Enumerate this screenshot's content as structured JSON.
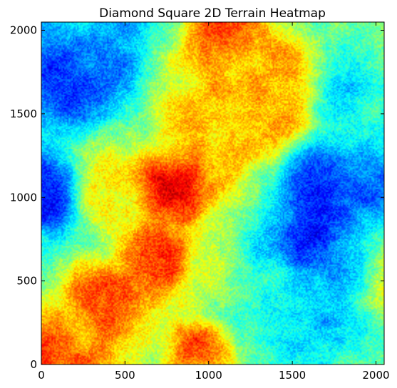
{
  "chart_data": {
    "type": "heatmap",
    "title": "Diamond Square 2D Terrain Heatmap",
    "xlabel": "",
    "ylabel": "",
    "xlim": [
      0,
      2049
    ],
    "ylim": [
      0,
      2049
    ],
    "x_ticks": [
      0,
      500,
      1000,
      1500,
      2000
    ],
    "y_ticks": [
      0,
      500,
      1000,
      1500,
      2000
    ],
    "x_tick_labels": [
      "0",
      "500",
      "1000",
      "1500",
      "2000"
    ],
    "y_tick_labels": [
      "0",
      "500",
      "1000",
      "1500",
      "2000"
    ],
    "colormap": "jet",
    "grid": false,
    "legend": "none",
    "grid_size": 2049,
    "high_regions": [
      {
        "x": 380,
        "y": 360,
        "radius": 170,
        "value": 0.92
      },
      {
        "x": 680,
        "y": 620,
        "radius": 150,
        "value": 0.85
      },
      {
        "x": 760,
        "y": 1080,
        "radius": 160,
        "value": 0.85
      },
      {
        "x": 950,
        "y": 80,
        "radius": 140,
        "value": 0.92
      },
      {
        "x": 1100,
        "y": 2000,
        "radius": 220,
        "value": 0.82
      },
      {
        "x": 1250,
        "y": 1700,
        "radius": 260,
        "value": 0.72
      },
      {
        "x": 1350,
        "y": 1500,
        "radius": 180,
        "value": 0.7
      },
      {
        "x": 1000,
        "y": 1350,
        "radius": 220,
        "value": 0.66
      },
      {
        "x": 400,
        "y": 1000,
        "radius": 170,
        "value": 0.64
      },
      {
        "x": 200,
        "y": 100,
        "radius": 220,
        "value": 0.68
      }
    ],
    "low_regions": [
      {
        "x": 60,
        "y": 1030,
        "radius": 140,
        "value": 0.12
      },
      {
        "x": 200,
        "y": 1700,
        "radius": 200,
        "value": 0.18
      },
      {
        "x": 1850,
        "y": 1050,
        "radius": 260,
        "value": 0.1
      },
      {
        "x": 1700,
        "y": 650,
        "radius": 230,
        "value": 0.15
      },
      {
        "x": 1900,
        "y": 1700,
        "radius": 230,
        "value": 0.25
      },
      {
        "x": 1200,
        "y": 550,
        "radius": 250,
        "value": 0.32
      },
      {
        "x": 1550,
        "y": 250,
        "radius": 230,
        "value": 0.3
      }
    ]
  }
}
